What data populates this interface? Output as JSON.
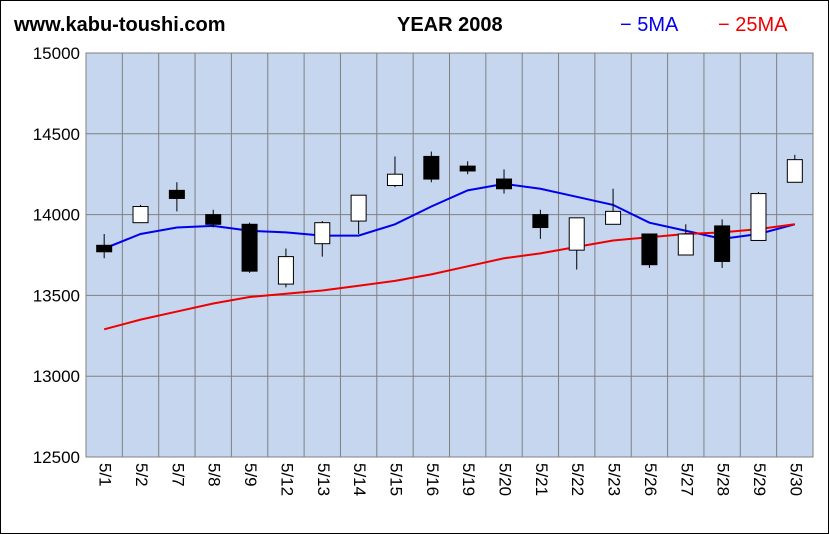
{
  "header": {
    "site": "www.kabu-toushi.com",
    "title": "YEAR 2008",
    "legend_5ma": "− 5MA",
    "legend_25ma": "− 25MA"
  },
  "colors": {
    "plot_bg": "#c5d6ee",
    "ma5": "#0000ee",
    "ma25": "#ee0000",
    "up_candle": "#ffffff",
    "down_candle": "#000000",
    "gridline": "#808080"
  },
  "chart_data": {
    "type": "candlestick",
    "title": "YEAR 2008",
    "y_ticks": [
      12500,
      13000,
      13500,
      14000,
      14500,
      15000
    ],
    "ylim": [
      12500,
      15000
    ],
    "grid": "vertical lines between dates",
    "legend_position": "top-right",
    "categories": [
      "5/1",
      "5/2",
      "5/7",
      "5/8",
      "5/9",
      "5/12",
      "5/13",
      "5/14",
      "5/15",
      "5/16",
      "5/19",
      "5/20",
      "5/21",
      "5/22",
      "5/23",
      "5/26",
      "5/27",
      "5/28",
      "5/29",
      "5/30"
    ],
    "ohlc": [
      {
        "open": 13810,
        "high": 13880,
        "low": 13730,
        "close": 13770
      },
      {
        "open": 13950,
        "high": 14060,
        "low": 13950,
        "close": 14050
      },
      {
        "open": 14150,
        "high": 14200,
        "low": 14020,
        "close": 14100
      },
      {
        "open": 14000,
        "high": 14030,
        "low": 13920,
        "close": 13940
      },
      {
        "open": 13940,
        "high": 13950,
        "low": 13640,
        "close": 13650
      },
      {
        "open": 13570,
        "high": 13790,
        "low": 13550,
        "close": 13740
      },
      {
        "open": 13820,
        "high": 13960,
        "low": 13740,
        "close": 13950
      },
      {
        "open": 13960,
        "high": 14120,
        "low": 13880,
        "close": 14120
      },
      {
        "open": 14180,
        "high": 14360,
        "low": 14170,
        "close": 14250
      },
      {
        "open": 14360,
        "high": 14390,
        "low": 14200,
        "close": 14220
      },
      {
        "open": 14300,
        "high": 14330,
        "low": 14250,
        "close": 14270
      },
      {
        "open": 14220,
        "high": 14280,
        "low": 14130,
        "close": 14160
      },
      {
        "open": 14000,
        "high": 14030,
        "low": 13850,
        "close": 13920
      },
      {
        "open": 13780,
        "high": 13980,
        "low": 13660,
        "close": 13980
      },
      {
        "open": 13940,
        "high": 14160,
        "low": 13940,
        "close": 14020
      },
      {
        "open": 13880,
        "high": 13880,
        "low": 13670,
        "close": 13690
      },
      {
        "open": 13750,
        "high": 13940,
        "low": 13750,
        "close": 13880
      },
      {
        "open": 13930,
        "high": 13970,
        "low": 13670,
        "close": 13710
      },
      {
        "open": 13840,
        "high": 14140,
        "low": 13840,
        "close": 14130
      },
      {
        "open": 14200,
        "high": 14370,
        "low": 14200,
        "close": 14340
      }
    ],
    "series": [
      {
        "name": "5MA",
        "values": [
          13790,
          13880,
          13920,
          13930,
          13900,
          13890,
          13870,
          13870,
          13940,
          14050,
          14150,
          14190,
          14160,
          14110,
          14060,
          13950,
          13900,
          13850,
          13880,
          13940
        ]
      },
      {
        "name": "25MA",
        "values": [
          13290,
          13350,
          13400,
          13450,
          13490,
          13510,
          13530,
          13560,
          13590,
          13630,
          13680,
          13730,
          13760,
          13800,
          13840,
          13860,
          13880,
          13890,
          13910,
          13940
        ]
      }
    ]
  }
}
